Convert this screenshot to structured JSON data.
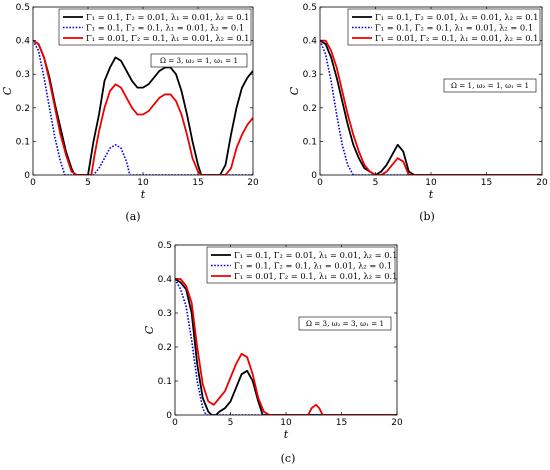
{
  "chart_data": [
    {
      "type": "line",
      "panel_label": "(a)",
      "xlabel": "t",
      "ylabel": "C",
      "xlim": [
        0,
        20
      ],
      "ylim": [
        0,
        0.5
      ],
      "xticks": [
        0,
        5,
        10,
        15,
        20
      ],
      "yticks": [
        0,
        0.1,
        0.2,
        0.3,
        0.4,
        0.5
      ],
      "grid": false,
      "legend_position": "top-right",
      "annotation": "Ω = 3,  ω₂ = 1,  ω₁ = 1",
      "series": [
        {
          "name": "Γ₁ = 0.1,  Γ₂ = 0.01,  λ₁ = 0.01,  λ₂ = 0.1",
          "color": "#000000",
          "style": "solid",
          "x": [
            0,
            0.5,
            1,
            1.5,
            2,
            2.5,
            3,
            3.5,
            3.8,
            4.0,
            4.5,
            5,
            5.5,
            6,
            6.5,
            7,
            7.5,
            8,
            8.5,
            9,
            9.5,
            10,
            10.5,
            11,
            11.5,
            12,
            12.5,
            13,
            13.5,
            14,
            14.5,
            15,
            15.3,
            15.6,
            16,
            16.5,
            17,
            17.5,
            18,
            18.5,
            19,
            19.5,
            20
          ],
          "y": [
            0.4,
            0.39,
            0.35,
            0.29,
            0.21,
            0.14,
            0.07,
            0.02,
            0,
            0,
            0,
            0,
            0.1,
            0.18,
            0.28,
            0.32,
            0.35,
            0.34,
            0.31,
            0.28,
            0.26,
            0.26,
            0.27,
            0.29,
            0.31,
            0.32,
            0.32,
            0.3,
            0.25,
            0.18,
            0.1,
            0.03,
            0,
            0,
            0,
            0,
            0,
            0.03,
            0.12,
            0.2,
            0.26,
            0.29,
            0.31
          ]
        },
        {
          "name": "Γ₁ = 0.1,  Γ₂ = 0.1,  λ₁ = 0.01,  λ₂ = 0.1",
          "color": "#0000ee",
          "style": "dotted",
          "x": [
            0,
            0.5,
            1,
            1.5,
            2,
            2.5,
            2.9,
            3.5,
            5,
            5.5,
            6,
            6.5,
            7,
            7.5,
            8,
            8.5,
            8.8,
            9.5,
            12,
            15,
            20
          ],
          "y": [
            0.4,
            0.37,
            0.29,
            0.2,
            0.11,
            0.04,
            0,
            0,
            0,
            0,
            0.02,
            0.05,
            0.08,
            0.09,
            0.08,
            0.04,
            0,
            0,
            0,
            0,
            0
          ]
        },
        {
          "name": "Γ₁ = 0.01,  Γ₂ = 0.1,  λ₁ = 0.01,  λ₂ = 0.1",
          "color": "#ee0000",
          "style": "solid",
          "x": [
            0,
            0.5,
            1,
            1.5,
            2,
            2.5,
            3,
            3.5,
            4,
            4.5,
            5,
            5.3,
            5.6,
            6,
            6.5,
            7,
            7.5,
            8,
            8.5,
            9,
            9.5,
            10,
            10.5,
            11,
            11.5,
            12,
            12.5,
            13,
            13.5,
            14,
            14.5,
            15,
            15.3,
            15.6,
            16,
            16.5,
            17,
            17.5,
            18,
            18.5,
            19,
            19.5,
            20
          ],
          "y": [
            0.4,
            0.39,
            0.35,
            0.28,
            0.2,
            0.12,
            0.06,
            0.01,
            0,
            0,
            0,
            0,
            0.06,
            0.13,
            0.2,
            0.25,
            0.27,
            0.26,
            0.23,
            0.2,
            0.18,
            0.18,
            0.19,
            0.21,
            0.23,
            0.24,
            0.24,
            0.22,
            0.18,
            0.12,
            0.05,
            0.01,
            0,
            0,
            0,
            0,
            0,
            0,
            0.02,
            0.08,
            0.12,
            0.15,
            0.17
          ]
        }
      ]
    },
    {
      "type": "line",
      "panel_label": "(b)",
      "xlabel": "t",
      "ylabel": "C",
      "xlim": [
        0,
        20
      ],
      "ylim": [
        0,
        0.5
      ],
      "xticks": [
        0,
        5,
        10,
        15,
        20
      ],
      "yticks": [
        0,
        0.1,
        0.2,
        0.3,
        0.4,
        0.5
      ],
      "grid": false,
      "legend_position": "top-right",
      "annotation": "Ω = 1,  ω₂ = 1,  ω₁ = 1",
      "series": [
        {
          "name": "Γ₁ = 0.1,  Γ₂ = 0.01,  λ₁ = 0.01,  λ₂ = 0.1",
          "color": "#000000",
          "style": "solid",
          "x": [
            0,
            0.5,
            1,
            1.5,
            2,
            2.5,
            3,
            3.5,
            4,
            4.5,
            5,
            5.5,
            6,
            6.5,
            7,
            7.5,
            8,
            8.5,
            10,
            15,
            20
          ],
          "y": [
            0.4,
            0.39,
            0.35,
            0.29,
            0.22,
            0.15,
            0.09,
            0.05,
            0.02,
            0.01,
            0,
            0.01,
            0.03,
            0.06,
            0.09,
            0.07,
            0.01,
            0,
            0,
            0,
            0
          ]
        },
        {
          "name": "Γ₁ = 0.1,  Γ₂ = 0.1,  λ₁ = 0.01,  λ₂ = 0.1",
          "color": "#0000ee",
          "style": "dotted",
          "x": [
            0,
            0.5,
            1,
            1.5,
            2,
            2.5,
            3,
            3.5,
            5,
            10,
            15,
            20
          ],
          "y": [
            0.4,
            0.36,
            0.28,
            0.18,
            0.09,
            0.03,
            0,
            0,
            0,
            0,
            0,
            0
          ]
        },
        {
          "name": "Γ₁ = 0.01,  Γ₂ = 0.1,  λ₁ = 0.01,  λ₂ = 0.1",
          "color": "#ee0000",
          "style": "solid",
          "x": [
            0,
            0.5,
            1,
            1.5,
            2,
            2.5,
            3,
            3.5,
            4,
            4.5,
            5,
            5.5,
            6,
            6.5,
            7,
            7.5,
            8,
            8.5,
            10,
            15,
            20
          ],
          "y": [
            0.4,
            0.4,
            0.37,
            0.32,
            0.25,
            0.18,
            0.12,
            0.07,
            0.03,
            0.01,
            0,
            0,
            0.01,
            0.03,
            0.05,
            0.04,
            0,
            0,
            0,
            0,
            0
          ]
        }
      ]
    },
    {
      "type": "line",
      "panel_label": "(c)",
      "xlabel": "t",
      "ylabel": "C",
      "xlim": [
        0,
        20
      ],
      "ylim": [
        0,
        0.5
      ],
      "xticks": [
        0,
        5,
        10,
        15,
        20
      ],
      "yticks": [
        0,
        0.1,
        0.2,
        0.3,
        0.4,
        0.5
      ],
      "grid": false,
      "legend_position": "top-right",
      "annotation": "Ω = 3,  ω₂ = 3,  ω₁ = 1",
      "series": [
        {
          "name": "Γ₁ = 0.1,  Γ₂ = 0.01,  λ₁ = 0.01,  λ₂ = 0.1",
          "color": "#000000",
          "style": "solid",
          "x": [
            0,
            0.5,
            1,
            1.5,
            2,
            2.5,
            3,
            3.3,
            3.7,
            4,
            4.5,
            5,
            5.5,
            6,
            6.5,
            7,
            7.5,
            7.9,
            8.5,
            10,
            15,
            20
          ],
          "y": [
            0.4,
            0.39,
            0.37,
            0.3,
            0.15,
            0.05,
            0.01,
            0,
            0,
            0.01,
            0.02,
            0.04,
            0.08,
            0.12,
            0.13,
            0.1,
            0.04,
            0,
            0,
            0,
            0,
            0
          ]
        },
        {
          "name": "Γ₁ = 0.1,  Γ₂ = 0.1,  λ₁ = 0.01,  λ₂ = 0.1",
          "color": "#0000ee",
          "style": "dotted",
          "x": [
            0,
            0.5,
            1,
            1.5,
            2,
            2.5,
            2.8,
            3.5,
            5,
            10,
            15,
            20
          ],
          "y": [
            0.4,
            0.37,
            0.32,
            0.22,
            0.1,
            0.02,
            0,
            0,
            0,
            0,
            0,
            0
          ]
        },
        {
          "name": "Γ₁ = 0.01,  Γ₂ = 0.1,  λ₁ = 0.01,  λ₂ = 0.1",
          "color": "#ee0000",
          "style": "solid",
          "x": [
            0,
            0.5,
            1,
            1.5,
            2,
            2.5,
            3,
            3.5,
            4,
            4.5,
            5,
            5.5,
            6,
            6.5,
            7,
            7.5,
            8,
            8.5,
            9,
            10,
            12,
            12.3,
            12.7,
            13,
            13.3,
            15,
            20
          ],
          "y": [
            0.4,
            0.4,
            0.38,
            0.33,
            0.2,
            0.09,
            0.04,
            0.03,
            0.05,
            0.07,
            0.11,
            0.15,
            0.18,
            0.17,
            0.12,
            0.05,
            0.01,
            0,
            0,
            0,
            0,
            0.02,
            0.03,
            0.02,
            0,
            0,
            0
          ]
        }
      ]
    }
  ]
}
